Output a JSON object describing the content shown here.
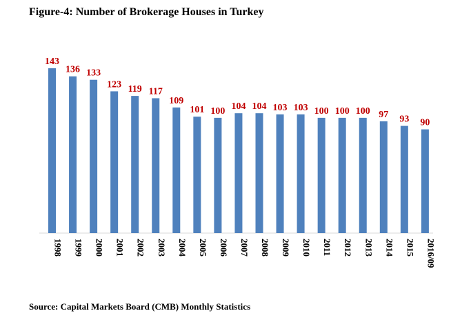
{
  "figure": {
    "title": "Figure-4: Number of Brokerage Houses in Turkey",
    "source": "Source: Capital Markets Board (CMB) Monthly Statistics"
  },
  "chart_data": {
    "type": "bar",
    "title": "Figure-4: Number of Brokerage Houses in Turkey",
    "xlabel": "",
    "ylabel": "",
    "categories": [
      "1998",
      "1999",
      "2000",
      "2001",
      "2002",
      "2003",
      "2004",
      "2005",
      "2006",
      "2007",
      "2008",
      "2009",
      "2010",
      "2011",
      "2012",
      "2013",
      "2014",
      "2015",
      "2016/09"
    ],
    "values": [
      143,
      136,
      133,
      123,
      119,
      117,
      109,
      101,
      100,
      104,
      104,
      103,
      103,
      100,
      100,
      100,
      97,
      93,
      90
    ],
    "ylim": [
      0,
      143
    ],
    "grid": false,
    "legend": "none",
    "bar_color": "#4F81BD",
    "label_color": "#C00000",
    "tick_orientation": "vertical"
  }
}
